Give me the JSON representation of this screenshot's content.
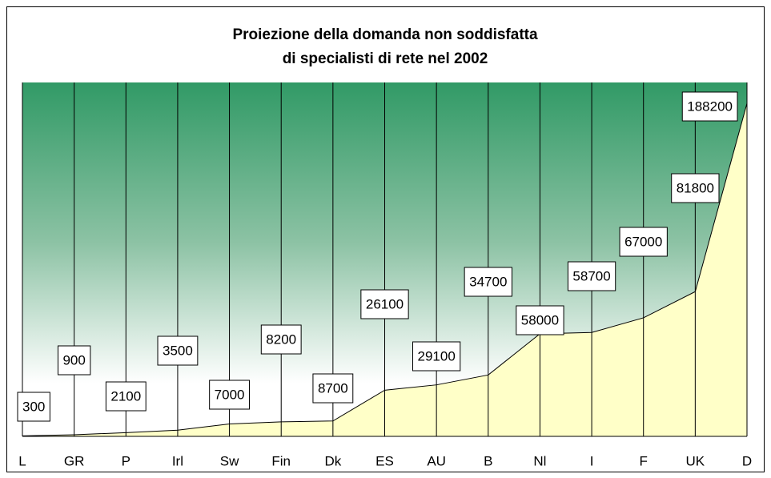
{
  "chart_data": {
    "type": "area",
    "title": [
      "Proiezione della domanda non soddisfatta",
      "di specialisti di rete nel 2002"
    ],
    "categories": [
      "L",
      "GR",
      "P",
      "Irl",
      "Sw",
      "Fin",
      "Dk",
      "ES",
      "AU",
      "B",
      "Nl",
      "I",
      "F",
      "UK",
      "D"
    ],
    "values": [
      300,
      900,
      2100,
      3500,
      7000,
      8200,
      8700,
      26100,
      29100,
      34700,
      58000,
      58700,
      67000,
      81800,
      188200
    ],
    "color": "#ffffc8",
    "ylim": [
      0,
      200000
    ],
    "grid": true
  }
}
